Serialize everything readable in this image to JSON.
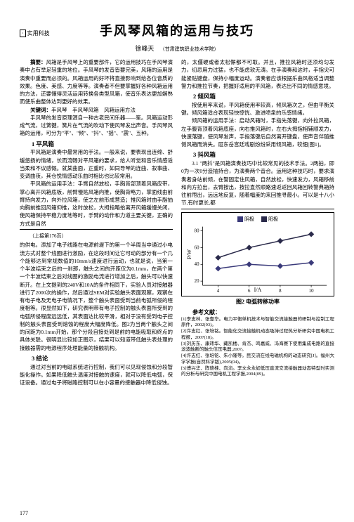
{
  "header": {
    "tag_box": "·",
    "tag_text": "实用科技"
  },
  "title": "手风琴风箱的运用与技巧",
  "author": "徐峰天",
  "affiliation": "（甘肃建筑职业技术学院）",
  "left": {
    "abstract_label": "摘要：",
    "abstract": "风箱是手风琴上的重要部件，它的运用技巧在手风琴演奏中占有举足轻重的地位。手风琴的发音皆要完美，风箱的运用是演奏中重要而必须的。风箱运用的好坏将直接影响到给各位音质的效果。色度、美感、力度等等。演奏者不但要掌握好各种风箱运用的方法，还要懂得灵活运用转换各类型风箱，使音乐表达更加娴熟而使乐曲整体达到更好的效果。",
    "keywords_label": "关键词：",
    "keywords": "手风琴　手风琴风箱　风箱运用方法",
    "p1": "手风琴的发音原理源自一种古老民间乐器——笙。风箱运动形成气流，过簧键，簧片在气流的吹动下使风琴发出声音。手风琴风箱的运用，可分为\"平\"、\"倾\"、\"抖\"、\"摇\"、\"震\"、五种。",
    "s1_title": "1 平风箱",
    "s1_p1": "平风箱是演奏中最常用的手法。一般来说，要表现出连绵、舒缓悠扬的情绪，长而流畅对平风箱的要求，给人听觉和音乐情感适当柔和不议感慨。就某曲面，正重时，如同导琴的连曲、叙事曲、变调曲夜，其仓悦情感动乐曲时相比也比较常用。",
    "s1_p2": "平风箱的运用手法：手臂自然放松，手胸背部顶着风箱皮带，掌心离开风箱底板，前臂慢贴风箱向推，使胸背略力，掌面线由前臂持向发力，向外拉风箱，使之左前形成营造；推风箱时由手脂抽向胸前推回风箱仰推，这时放松，大拇指略抬离开风箱缓慢关闭，使风箱保持平稳力度地等时，手臂的动作和力道主要关键，正确的方式是自然",
    "divider_note": "（上接第176页）",
    "cont_p1": "的供电。添加了电子线路在电源前堤下的第一个半周当中通过小电流方式对整个线圈进行激励，在这段时间让它可动的部分有一个几个能够达到常规数值的10mm/s速度进行运动，也就是说，当第一个半波结束之后的一刹那，触头之间的开距仅为0.1mm，在两个第一个半波结束之后对线圈的激励电流进行增加之后，触头可以快速断开。在上文提到的240V和10A的条件相同下，实验人员对接触器进行了2000次的操作，然后通过SEM对实验触头表面观察，观察在有电子电及无电子电情况下，整个触头表面受到当前电弧所侵的程度相等。很显然如下，研究表明带有电子控制的触头表面所受到的电弧所侵程度远远低，其表面达比较平滑，相对于没有受到电子控制的触头表面受到熔蚀的程度大幅度降低。图2为当两个触头之间的间距为0.1mm开始，那个分段自接处到是前的电能吸取和终点的具体关联。很明显比较如正图示，结果可以知道带低触头表处理的接触器需的电源程序处理能量的接触机构。",
    "s_conc": "3 结论",
    "conc_p": "通过对当前的电磁系统进行控制，我们可以见现侵蚀和分段智能化操作。如果降低触头温度对接触的速度，就可以降低电弧，保证设备。通过电子将磁路控制可以在小容量的接触器中降低侵蚀。"
  },
  "right": {
    "p1": "的，太僵硬或者太松懈都不可取。并且，推拉风箱时还须均匀发力，切忌用力过猛，也不能虑软无涛。在手演奏和这时，手指尖可能紧贴键盘，保持小幅度运动。演奏者应该根据乐曲风格适当调整警力和推拉节奏，把握好适用的平风箱，表达出不同的情感意境。",
    "s2_title": "2 倾风箱",
    "s2_p1": "按使用率来说，平风箱使用率较高，倾风箱次之，但由平衡关键。倾风箱适合表现轻快惊恍、激进喷泉的乐感情绪。",
    "s2_p2": "倾风箱的运用手法：启动风箱时，手指先落键，向外拉风箱，左手腹背顶着风箱底座，向右推风箱时，左右大拇指相辅顺发力，快速落键，使风琴发声，手指落键后自然离开键盘，使声音伴随推侧风箱而消失。屈东岳宫廷戏剧纷纷采用倾风箱，较细[图1]。",
    "s3_title": "3 抖风箱",
    "s3_p1": "3.1 \"两抖\"是风箱演奏技巧中比较常见的技术手法。2两拍，即0为一次0分造抽持合，为演奏两个音合。运用这种技巧时，要求演奏者身站前倾，在警固定住风箱，自然放松，快速发力，风箱移前和向方拉出，去臂按出，按拉直然顺路速返返回风箱回转警典箱持往前甩出，远远地反复，随着幅度的来回推寻最小。可以是十八小节,有时更长,都"
  },
  "chart": {
    "axis_y_label": "P/W",
    "axis_x_label": "I/A",
    "legend": [
      {
        "label": "阴极",
        "color": "#3a3a7a"
      },
      {
        "label": "阳极",
        "color": "#2a2a4a"
      }
    ],
    "x_ticks": [
      4,
      6,
      8,
      10
    ],
    "y_ticks": [
      20,
      40,
      60,
      80
    ],
    "series1": {
      "color": "#3a3a7a",
      "points": [
        [
          4,
          35
        ],
        [
          6,
          40
        ],
        [
          8,
          38
        ],
        [
          10,
          42
        ]
      ]
    },
    "series2": {
      "color": "#2a2a4a",
      "points": [
        [
          4,
          48
        ],
        [
          6,
          60
        ],
        [
          8,
          68
        ],
        [
          10,
          76
        ]
      ]
    },
    "xlim": [
      3,
      11
    ],
    "ylim": [
      15,
      85
    ],
    "caption": "图2  电弧转移功率"
  },
  "refs": {
    "head": "参考文献：",
    "items": [
      "[1]李志林、张壹华。电力平衡单机技术与智能交流接触器的研制与控制工程原件，2002(03)。",
      "[2]许志红、张培铭。智能化交流接触机动态吸持过程热分析研究中国电机工程报，2007(18)。",
      "[3]刘历东、康玮华、藏凯楼、肯杰、鸣嘉威、冯海赛下使用集成电路的直接滤波触断的触头信压电器,2007。",
      "[4]许志红、张培铭、朱小隆等。民交流在线电磁机构的动态研究[J]。福州大学学报(自然科学版),2005(04)。",
      "[5]傅兴华、陈德桂、向浈。李文永永如低压直流交流接触器动态特型时实测的分析与研究中国电机工程学报,2004(09)。"
    ]
  },
  "page_number": "177"
}
